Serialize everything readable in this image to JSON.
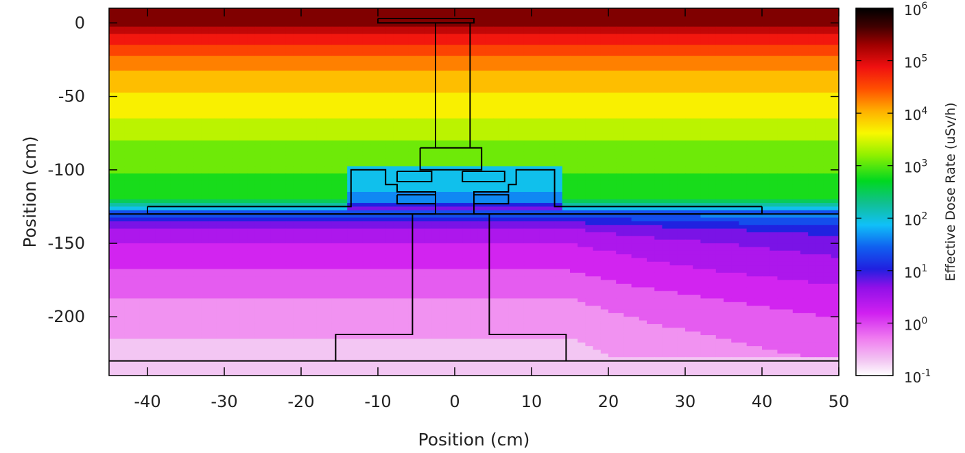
{
  "chart_data": {
    "type": "heatmap",
    "title": "",
    "xlabel": "Position (cm)",
    "ylabel": "Position (cm)",
    "xlim": [
      -45,
      50
    ],
    "ylim": [
      -240,
      10
    ],
    "x_ticks": [
      {
        "value": -40,
        "label": "-40"
      },
      {
        "value": -30,
        "label": "-30"
      },
      {
        "value": -20,
        "label": "-20"
      },
      {
        "value": -10,
        "label": "-10"
      },
      {
        "value": 0,
        "label": "0"
      },
      {
        "value": 10,
        "label": "10"
      },
      {
        "value": 20,
        "label": "20"
      },
      {
        "value": 30,
        "label": "30"
      },
      {
        "value": 40,
        "label": "40"
      },
      {
        "value": 50,
        "label": "50"
      }
    ],
    "y_ticks": [
      {
        "value": 0,
        "label": "0"
      },
      {
        "value": -50,
        "label": "-50"
      },
      {
        "value": -100,
        "label": "-100"
      },
      {
        "value": -150,
        "label": "-150"
      },
      {
        "value": -200,
        "label": "-200"
      }
    ],
    "colorbar": {
      "label": "Effective Dose Rate (uSv/h)",
      "scale": "log",
      "range": [
        0.1,
        1000000
      ],
      "ticks": [
        {
          "value": 1000000,
          "base": "10",
          "exp": "6"
        },
        {
          "value": 100000,
          "base": "10",
          "exp": "5"
        },
        {
          "value": 10000,
          "base": "10",
          "exp": "4"
        },
        {
          "value": 1000,
          "base": "10",
          "exp": "3"
        },
        {
          "value": 100,
          "base": "10",
          "exp": "2"
        },
        {
          "value": 10,
          "base": "10",
          "exp": "1"
        },
        {
          "value": 1,
          "base": "10",
          "exp": "0"
        },
        {
          "value": 0.1,
          "base": "10",
          "exp": "-1"
        }
      ]
    },
    "dose_by_depth": [
      {
        "y": 5,
        "dose": 300000
      },
      {
        "y": 0,
        "dose": 250000
      },
      {
        "y": -10,
        "dose": 80000
      },
      {
        "y": -20,
        "dose": 30000
      },
      {
        "y": -30,
        "dose": 15000
      },
      {
        "y": -40,
        "dose": 9000
      },
      {
        "y": -50,
        "dose": 6000
      },
      {
        "y": -60,
        "dose": 4000
      },
      {
        "y": -70,
        "dose": 2500
      },
      {
        "y": -80,
        "dose": 1700
      },
      {
        "y": -90,
        "dose": 1200
      },
      {
        "y": -100,
        "dose": 900
      },
      {
        "y": -110,
        "dose": 700
      },
      {
        "y": -120,
        "dose": 500
      },
      {
        "y": -130,
        "dose": 20
      },
      {
        "y": -140,
        "dose": 4
      },
      {
        "y": -150,
        "dose": 2
      },
      {
        "y": -170,
        "dose": 1
      },
      {
        "y": -190,
        "dose": 0.5
      },
      {
        "y": -210,
        "dose": 0.3
      },
      {
        "y": -230,
        "dose": 0.2
      }
    ],
    "geometry_outlines": [
      [
        [
          -10,
          3
        ],
        [
          2.5,
          3
        ],
        [
          2.5,
          0
        ],
        [
          -10,
          0
        ],
        [
          -10,
          3
        ]
      ],
      [
        [
          -2.5,
          0
        ],
        [
          -2.5,
          -85
        ]
      ],
      [
        [
          2,
          0
        ],
        [
          2,
          -85
        ]
      ],
      [
        [
          -4.5,
          -85
        ],
        [
          3.5,
          -85
        ],
        [
          3.5,
          -100
        ],
        [
          -4.5,
          -100
        ],
        [
          -4.5,
          -85
        ]
      ],
      [
        [
          -40,
          -125
        ],
        [
          -13.5,
          -125
        ],
        [
          -13.5,
          -100
        ],
        [
          -9,
          -100
        ],
        [
          -9,
          -110
        ],
        [
          -7.5,
          -110
        ],
        [
          -7.5,
          -115
        ],
        [
          -2.5,
          -115
        ],
        [
          -2.5,
          -130
        ],
        [
          -40,
          -130
        ],
        [
          -40,
          -125
        ]
      ],
      [
        [
          40,
          -125
        ],
        [
          13,
          -125
        ],
        [
          13,
          -100
        ],
        [
          8,
          -100
        ],
        [
          8,
          -110
        ],
        [
          7,
          -110
        ],
        [
          7,
          -115
        ],
        [
          2.5,
          -115
        ],
        [
          2.5,
          -130
        ],
        [
          40,
          -130
        ],
        [
          40,
          -125
        ]
      ],
      [
        [
          -7.5,
          -101
        ],
        [
          -3,
          -101
        ],
        [
          -3,
          -108
        ],
        [
          -7.5,
          -108
        ],
        [
          -7.5,
          -101
        ]
      ],
      [
        [
          1,
          -101
        ],
        [
          6.5,
          -101
        ],
        [
          6.5,
          -108
        ],
        [
          1,
          -108
        ],
        [
          1,
          -101
        ]
      ],
      [
        [
          -7.5,
          -117
        ],
        [
          -2.5,
          -117
        ],
        [
          -2.5,
          -123
        ],
        [
          -7.5,
          -123
        ],
        [
          -7.5,
          -117
        ]
      ],
      [
        [
          2.5,
          -117
        ],
        [
          7,
          -117
        ],
        [
          7,
          -123
        ],
        [
          2.5,
          -123
        ],
        [
          2.5,
          -117
        ]
      ],
      [
        [
          -45,
          -130
        ],
        [
          50,
          -130
        ]
      ],
      [
        [
          -5.5,
          -130
        ],
        [
          -5.5,
          -212
        ],
        [
          -15.5,
          -212
        ],
        [
          -15.5,
          -230
        ]
      ],
      [
        [
          4.5,
          -130
        ],
        [
          4.5,
          -212
        ],
        [
          14.5,
          -212
        ],
        [
          14.5,
          -230
        ]
      ],
      [
        [
          -45,
          -230
        ],
        [
          50,
          -230
        ]
      ]
    ]
  }
}
